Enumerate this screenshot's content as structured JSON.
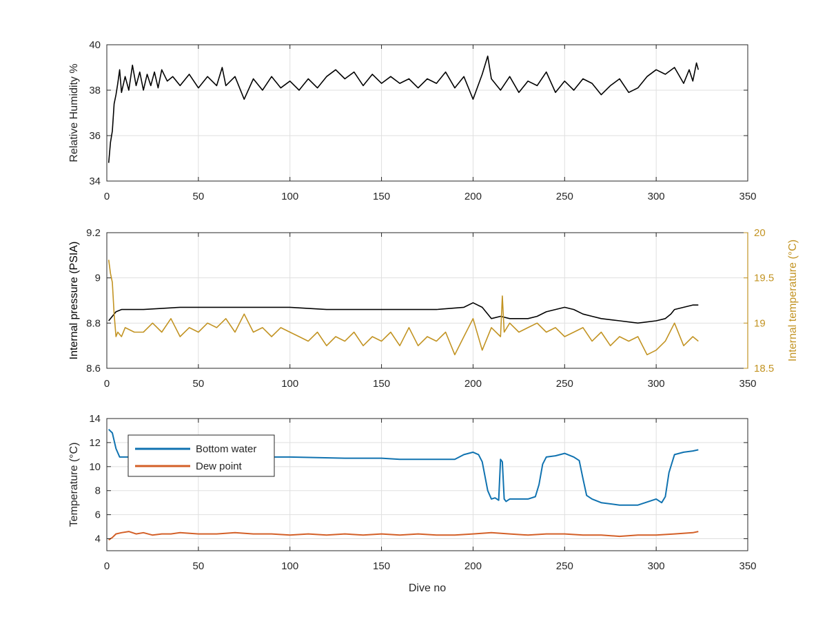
{
  "chart_data": [
    {
      "type": "line",
      "xlabel": "",
      "ylabel": "Relative Humidity %",
      "xlim": [
        0,
        350
      ],
      "ylim": [
        34,
        40
      ],
      "xticks": [
        0,
        50,
        100,
        150,
        200,
        250,
        300,
        350
      ],
      "yticks": [
        34,
        36,
        38,
        40
      ],
      "grid": true,
      "series": [
        {
          "color": "#000000",
          "x": [
            1,
            2,
            3,
            4,
            5,
            6,
            7,
            8,
            10,
            12,
            14,
            16,
            18,
            20,
            22,
            24,
            26,
            28,
            30,
            33,
            36,
            40,
            45,
            50,
            55,
            60,
            63,
            65,
            70,
            75,
            80,
            85,
            90,
            95,
            100,
            105,
            110,
            115,
            120,
            125,
            130,
            135,
            140,
            145,
            150,
            155,
            160,
            165,
            170,
            175,
            180,
            185,
            190,
            195,
            200,
            205,
            208,
            210,
            215,
            220,
            225,
            230,
            235,
            240,
            245,
            250,
            255,
            260,
            265,
            270,
            275,
            280,
            285,
            290,
            295,
            300,
            305,
            310,
            315,
            318,
            320,
            322,
            323
          ],
          "y": [
            34.8,
            35.7,
            36.2,
            37.4,
            37.8,
            38.3,
            38.9,
            37.9,
            38.6,
            38.0,
            39.1,
            38.2,
            38.8,
            38.0,
            38.7,
            38.2,
            38.8,
            38.1,
            38.9,
            38.4,
            38.6,
            38.2,
            38.7,
            38.1,
            38.6,
            38.2,
            39.0,
            38.2,
            38.6,
            37.6,
            38.5,
            38.0,
            38.6,
            38.1,
            38.4,
            38.0,
            38.5,
            38.1,
            38.6,
            38.9,
            38.5,
            38.8,
            38.2,
            38.7,
            38.3,
            38.6,
            38.3,
            38.5,
            38.1,
            38.5,
            38.3,
            38.8,
            38.1,
            38.6,
            37.6,
            38.7,
            39.5,
            38.5,
            38.0,
            38.6,
            37.9,
            38.4,
            38.2,
            38.8,
            37.9,
            38.4,
            38.0,
            38.5,
            38.3,
            37.8,
            38.2,
            38.5,
            37.9,
            38.1,
            38.6,
            38.9,
            38.7,
            39.0,
            38.3,
            38.9,
            38.4,
            39.2,
            38.9
          ]
        }
      ]
    },
    {
      "type": "line",
      "xlabel": "",
      "ylabel": "Internal pressure (PSIA)",
      "y2label": "Internal temperature (°C)",
      "xlim": [
        0,
        350
      ],
      "ylim": [
        8.6,
        9.2
      ],
      "y2lim": [
        18.5,
        20
      ],
      "xticks": [
        0,
        50,
        100,
        150,
        200,
        250,
        300,
        350
      ],
      "yticks": [
        8.6,
        8.8,
        9,
        9.2
      ],
      "y2ticks": [
        18.5,
        19,
        19.5,
        20
      ],
      "y2color": "#c29322",
      "grid": true,
      "series": [
        {
          "axis": "left",
          "color": "#000000",
          "x": [
            1,
            3,
            5,
            8,
            20,
            40,
            60,
            80,
            100,
            120,
            140,
            160,
            180,
            195,
            200,
            205,
            210,
            215,
            220,
            225,
            230,
            235,
            240,
            245,
            250,
            255,
            260,
            265,
            270,
            280,
            290,
            300,
            305,
            308,
            310,
            315,
            320,
            323
          ],
          "y": [
            8.81,
            8.83,
            8.85,
            8.86,
            8.86,
            8.87,
            8.87,
            8.87,
            8.87,
            8.86,
            8.86,
            8.86,
            8.86,
            8.87,
            8.89,
            8.87,
            8.82,
            8.83,
            8.82,
            8.82,
            8.82,
            8.83,
            8.85,
            8.86,
            8.87,
            8.86,
            8.84,
            8.83,
            8.82,
            8.81,
            8.8,
            8.81,
            8.82,
            8.84,
            8.86,
            8.87,
            8.88,
            8.88
          ]
        },
        {
          "axis": "right",
          "color": "#c29322",
          "x": [
            1,
            2,
            3,
            4,
            5,
            6,
            8,
            10,
            15,
            20,
            25,
            30,
            35,
            40,
            45,
            50,
            55,
            60,
            65,
            70,
            75,
            80,
            85,
            90,
            95,
            100,
            105,
            110,
            115,
            120,
            125,
            130,
            135,
            140,
            145,
            150,
            155,
            160,
            165,
            170,
            175,
            180,
            185,
            190,
            195,
            200,
            205,
            210,
            215,
            216,
            217,
            220,
            225,
            230,
            235,
            240,
            245,
            250,
            255,
            260,
            265,
            270,
            275,
            280,
            285,
            290,
            295,
            300,
            305,
            310,
            315,
            320,
            323
          ],
          "y": [
            19.7,
            19.55,
            19.45,
            19.1,
            18.85,
            18.9,
            18.85,
            18.95,
            18.9,
            18.9,
            19.0,
            18.9,
            19.05,
            18.85,
            18.95,
            18.9,
            19.0,
            18.95,
            19.05,
            18.9,
            19.1,
            18.9,
            18.95,
            18.85,
            18.95,
            18.9,
            18.85,
            18.8,
            18.9,
            18.75,
            18.85,
            18.8,
            18.9,
            18.75,
            18.85,
            18.8,
            18.9,
            18.75,
            18.95,
            18.75,
            18.85,
            18.8,
            18.9,
            18.65,
            18.85,
            19.05,
            18.7,
            18.95,
            18.85,
            19.3,
            18.9,
            19.0,
            18.9,
            18.95,
            19.0,
            18.9,
            18.95,
            18.85,
            18.9,
            18.95,
            18.8,
            18.9,
            18.75,
            18.85,
            18.8,
            18.85,
            18.65,
            18.7,
            18.8,
            19.0,
            18.75,
            18.85,
            18.8
          ]
        }
      ]
    },
    {
      "type": "line",
      "xlabel": "Dive no",
      "ylabel": "Temperature (°C)",
      "xlim": [
        0,
        350
      ],
      "ylim": [
        3,
        14
      ],
      "xticks": [
        0,
        50,
        100,
        150,
        200,
        250,
        300,
        350
      ],
      "yticks": [
        4,
        6,
        8,
        10,
        12,
        14
      ],
      "grid": true,
      "legend": "top-left",
      "series": [
        {
          "name": "Bottom water",
          "color": "#0f72b0",
          "x": [
            1,
            3,
            5,
            7,
            10,
            20,
            30,
            50,
            80,
            100,
            130,
            150,
            160,
            180,
            190,
            195,
            200,
            203,
            205,
            208,
            210,
            212,
            214,
            215,
            216,
            217,
            218,
            220,
            225,
            230,
            234,
            236,
            238,
            240,
            245,
            250,
            255,
            258,
            260,
            262,
            265,
            270,
            280,
            290,
            300,
            303,
            305,
            307,
            310,
            315,
            320,
            323
          ],
          "y": [
            13.1,
            12.8,
            11.5,
            10.8,
            10.8,
            10.8,
            10.9,
            10.8,
            10.8,
            10.8,
            10.7,
            10.7,
            10.6,
            10.6,
            10.6,
            11.0,
            11.2,
            11.0,
            10.4,
            8.0,
            7.3,
            7.4,
            7.2,
            10.6,
            10.4,
            7.3,
            7.1,
            7.3,
            7.3,
            7.3,
            7.5,
            8.5,
            10.2,
            10.8,
            10.9,
            11.1,
            10.8,
            10.5,
            9.0,
            7.6,
            7.3,
            7.0,
            6.8,
            6.8,
            7.3,
            7.0,
            7.5,
            9.5,
            11.0,
            11.2,
            11.3,
            11.4
          ]
        },
        {
          "name": "Dew point",
          "color": "#d35f27",
          "x": [
            1,
            3,
            5,
            8,
            12,
            16,
            20,
            25,
            30,
            35,
            40,
            50,
            60,
            70,
            80,
            90,
            100,
            110,
            120,
            130,
            140,
            150,
            160,
            170,
            180,
            190,
            200,
            210,
            220,
            230,
            240,
            250,
            260,
            270,
            280,
            290,
            300,
            310,
            320,
            323
          ],
          "y": [
            3.9,
            4.1,
            4.4,
            4.5,
            4.6,
            4.4,
            4.5,
            4.3,
            4.4,
            4.4,
            4.5,
            4.4,
            4.4,
            4.5,
            4.4,
            4.4,
            4.3,
            4.4,
            4.3,
            4.4,
            4.3,
            4.4,
            4.3,
            4.4,
            4.3,
            4.3,
            4.4,
            4.5,
            4.4,
            4.3,
            4.4,
            4.4,
            4.3,
            4.3,
            4.2,
            4.3,
            4.3,
            4.4,
            4.5,
            4.6
          ]
        }
      ]
    }
  ]
}
